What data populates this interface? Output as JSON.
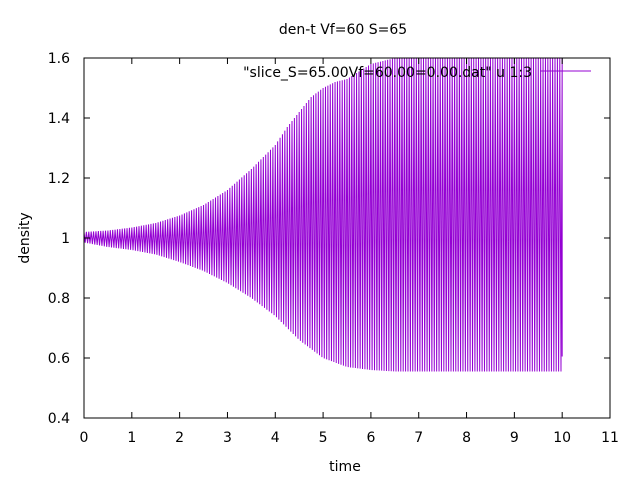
{
  "chart_data": {
    "type": "line",
    "title": "den-t Vf=60 S=65",
    "xlabel": "time",
    "ylabel": "density",
    "xlim": [
      0,
      11
    ],
    "ylim": [
      0.4,
      1.6
    ],
    "xticks": [
      "0",
      "1",
      "2",
      "3",
      "4",
      "5",
      "6",
      "7",
      "8",
      "9",
      "10",
      "11"
    ],
    "yticks": [
      "0.4",
      "0.6",
      "0.8",
      "1",
      "1.2",
      "1.4",
      "1.6"
    ],
    "grid": false,
    "legend_position": "top-right",
    "series": [
      {
        "name": "\"slice_S=65.00Vf=60.00=0.00.dat\" u 1:3",
        "color": "#9400d3",
        "oscillation_period": 0.05,
        "envelope": {
          "t": [
            0,
            0.5,
            1,
            1.5,
            2,
            2.5,
            3,
            3.5,
            4,
            4.25,
            4.5,
            4.75,
            5,
            5.25,
            5.5,
            6,
            6.5,
            7,
            7.5,
            8,
            8.5,
            9,
            9.5,
            10
          ],
          "upper": [
            1.02,
            1.025,
            1.035,
            1.05,
            1.075,
            1.11,
            1.16,
            1.23,
            1.31,
            1.37,
            1.42,
            1.47,
            1.5,
            1.52,
            1.53,
            1.58,
            1.6,
            1.6,
            1.6,
            1.6,
            1.6,
            1.6,
            1.6,
            1.6
          ],
          "lower": [
            0.985,
            0.97,
            0.96,
            0.945,
            0.92,
            0.89,
            0.85,
            0.8,
            0.74,
            0.7,
            0.66,
            0.63,
            0.6,
            0.585,
            0.57,
            0.56,
            0.555,
            0.555,
            0.555,
            0.555,
            0.555,
            0.555,
            0.555,
            0.555
          ]
        }
      }
    ]
  }
}
